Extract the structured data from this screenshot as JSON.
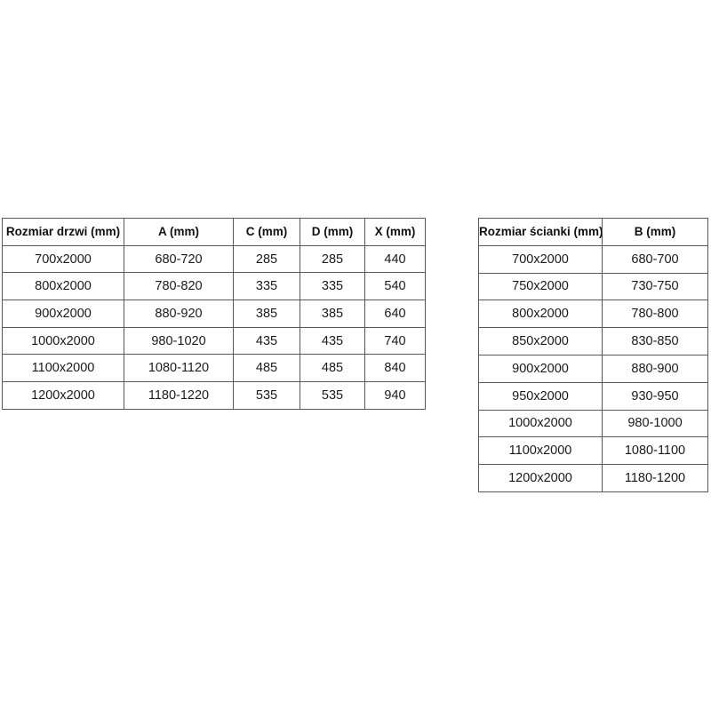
{
  "colors": {
    "background": "#ffffff",
    "border": "#595959",
    "text": "#1a1a1a"
  },
  "tables": [
    {
      "id": "doors",
      "headers": [
        "Rozmiar drzwi (mm)",
        "A (mm)",
        "C (mm)",
        "D (mm)",
        "X (mm)"
      ],
      "rows": [
        [
          "700x2000",
          "680-720",
          "285",
          "285",
          "440"
        ],
        [
          "800x2000",
          "780-820",
          "335",
          "335",
          "540"
        ],
        [
          "900x2000",
          "880-920",
          "385",
          "385",
          "640"
        ],
        [
          "1000x2000",
          "980-1020",
          "435",
          "435",
          "740"
        ],
        [
          "1100x2000",
          "1080-1120",
          "485",
          "485",
          "840"
        ],
        [
          "1200x2000",
          "1180-1220",
          "535",
          "535",
          "940"
        ]
      ]
    },
    {
      "id": "walls",
      "headers": [
        "Rozmiar ścianki (mm)",
        "B (mm)"
      ],
      "rows": [
        [
          "700x2000",
          "680-700"
        ],
        [
          "750x2000",
          "730-750"
        ],
        [
          "800x2000",
          "780-800"
        ],
        [
          "850x2000",
          "830-850"
        ],
        [
          "900x2000",
          "880-900"
        ],
        [
          "950x2000",
          "930-950"
        ],
        [
          "1000x2000",
          "980-1000"
        ],
        [
          "1100x2000",
          "1080-1100"
        ],
        [
          "1200x2000",
          "1180-1200"
        ]
      ]
    }
  ]
}
